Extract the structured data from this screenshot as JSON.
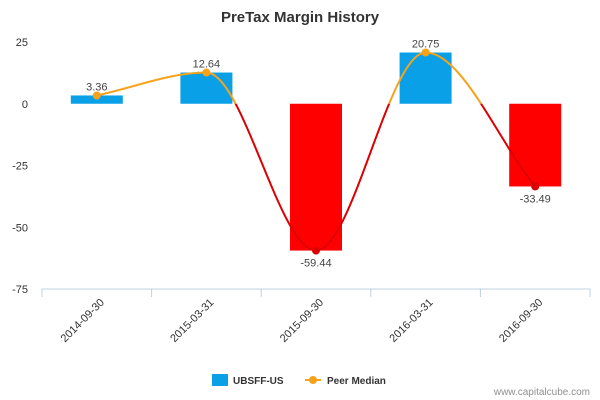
{
  "chart_data": {
    "type": "bar",
    "title": "PreTax Margin History",
    "categories": [
      "2014-09-30",
      "2015-03-31",
      "2015-09-30",
      "2016-03-31",
      "2016-09-30"
    ],
    "series": [
      {
        "name": "UBSFF-US",
        "type": "bar",
        "values": [
          3.36,
          12.64,
          -59.44,
          20.75,
          -33.49
        ],
        "positive_color": "#0aa0e8",
        "negative_color": "#ff0000"
      },
      {
        "name": "Peer Median",
        "type": "line",
        "values": [
          3.36,
          12.64,
          -59.44,
          20.75,
          -33.49
        ],
        "color": "#f7a21b"
      }
    ],
    "data_labels": [
      "3.36",
      "12.64",
      "-59.44",
      "20.75",
      "-33.49"
    ],
    "y_ticks": [
      25,
      0,
      -25,
      -50,
      -75
    ],
    "ylim": [
      -75,
      25
    ],
    "grid": false,
    "legend": "bottom-center"
  },
  "credit": "www.capitalcube.com"
}
